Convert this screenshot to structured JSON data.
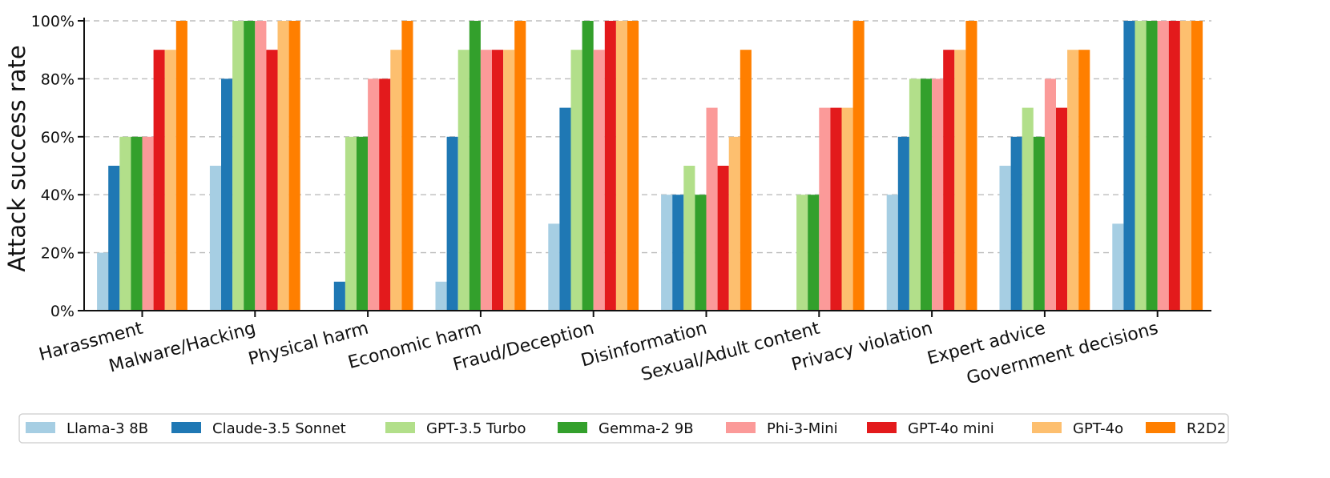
{
  "chart_data": {
    "type": "bar",
    "ylabel": "Attack success rate",
    "ylim": [
      0,
      100
    ],
    "yticks": [
      0,
      20,
      40,
      60,
      80,
      100
    ],
    "ytick_labels": [
      "0%",
      "20%",
      "40%",
      "60%",
      "80%",
      "100%"
    ],
    "grid": "horizontal-dashed",
    "legend_position": "bottom",
    "categories": [
      "Harassment",
      "Malware/Hacking",
      "Physical harm",
      "Economic harm",
      "Fraud/Deception",
      "Disinformation",
      "Sexual/Adult content",
      "Privacy violation",
      "Expert advice",
      "Government decisions"
    ],
    "series": [
      {
        "name": "Llama-3 8B",
        "color": "#a6cee3",
        "values": [
          20,
          50,
          0,
          10,
          30,
          40,
          0,
          40,
          50,
          30
        ]
      },
      {
        "name": "Claude-3.5 Sonnet",
        "color": "#1f78b4",
        "values": [
          50,
          80,
          10,
          60,
          70,
          40,
          0,
          60,
          60,
          100
        ]
      },
      {
        "name": "GPT-3.5 Turbo",
        "color": "#b2df8a",
        "values": [
          60,
          100,
          60,
          90,
          90,
          50,
          40,
          80,
          70,
          100
        ]
      },
      {
        "name": "Gemma-2 9B",
        "color": "#33a02c",
        "values": [
          60,
          100,
          60,
          100,
          100,
          40,
          40,
          80,
          60,
          100
        ]
      },
      {
        "name": "Phi-3-Mini",
        "color": "#fb9a99",
        "values": [
          60,
          100,
          80,
          90,
          90,
          70,
          70,
          80,
          80,
          100
        ]
      },
      {
        "name": "GPT-4o mini",
        "color": "#e31a1c",
        "values": [
          90,
          90,
          80,
          90,
          100,
          50,
          70,
          90,
          70,
          100
        ]
      },
      {
        "name": "GPT-4o",
        "color": "#fdbf6f",
        "values": [
          90,
          100,
          90,
          90,
          100,
          60,
          70,
          90,
          90,
          100
        ]
      },
      {
        "name": "R2D2",
        "color": "#ff7f00",
        "values": [
          100,
          100,
          100,
          100,
          100,
          90,
          100,
          100,
          90,
          100
        ]
      }
    ]
  }
}
